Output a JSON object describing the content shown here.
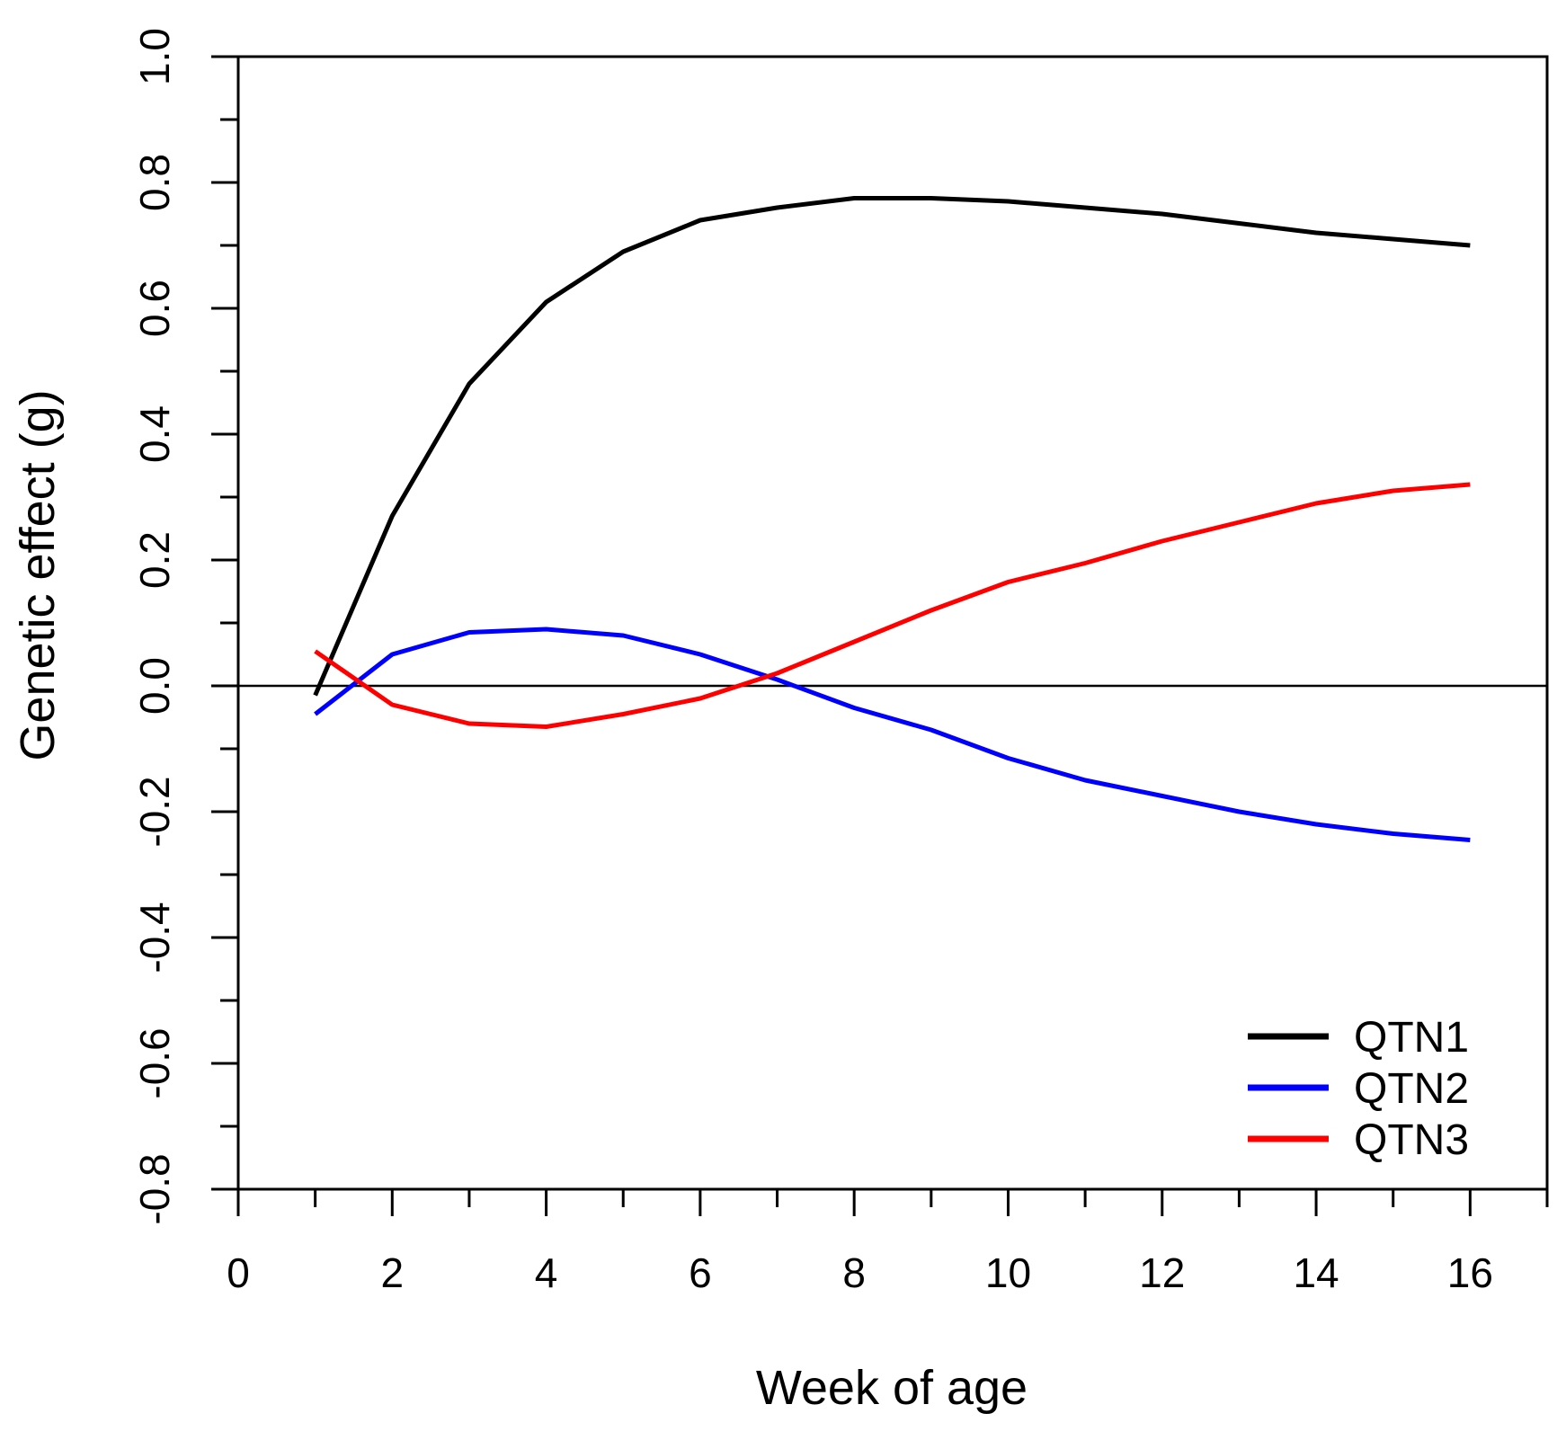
{
  "chart_data": {
    "type": "line",
    "title": "",
    "xlabel": "Week of age",
    "ylabel": "Genetic effect (g)",
    "xlim": [
      0,
      17
    ],
    "ylim": [
      -0.8,
      1.0
    ],
    "grid": false,
    "background": "#ffffff",
    "axis_color": "#000000",
    "zero_line": {
      "y": 0,
      "color": "#000000"
    },
    "x_axis": {
      "major_ticks": [
        0,
        2,
        4,
        6,
        8,
        10,
        12,
        14,
        16
      ],
      "major_tick_labels": [
        "0",
        "2",
        "4",
        "6",
        "8",
        "10",
        "12",
        "14",
        "16"
      ],
      "minor_ticks": [
        1,
        3,
        5,
        7,
        9,
        11,
        13,
        15,
        17
      ]
    },
    "y_axis": {
      "major_ticks": [
        -0.8,
        -0.6,
        -0.4,
        -0.2,
        0.0,
        0.2,
        0.4,
        0.6,
        0.8,
        1.0
      ],
      "major_tick_labels": [
        "-0.8",
        "-0.6",
        "-0.4",
        "-0.2",
        "0.0",
        "0.2",
        "0.4",
        "0.6",
        "0.8",
        "1.0"
      ],
      "minor_ticks": [
        -0.7,
        -0.5,
        -0.3,
        -0.1,
        0.1,
        0.3,
        0.5,
        0.7,
        0.9
      ]
    },
    "x": [
      1,
      2,
      3,
      4,
      5,
      6,
      7,
      8,
      9,
      10,
      11,
      12,
      13,
      14,
      15,
      16
    ],
    "series": [
      {
        "name": "QTN1",
        "color": "#000000",
        "values": [
          -0.015,
          0.27,
          0.48,
          0.61,
          0.69,
          0.74,
          0.76,
          0.775,
          0.775,
          0.77,
          0.76,
          0.75,
          0.735,
          0.72,
          0.71,
          0.7
        ]
      },
      {
        "name": "QTN2",
        "color": "#0000ff",
        "values": [
          -0.045,
          0.05,
          0.085,
          0.09,
          0.08,
          0.05,
          0.01,
          -0.035,
          -0.07,
          -0.115,
          -0.15,
          -0.175,
          -0.2,
          -0.22,
          -0.235,
          -0.245
        ]
      },
      {
        "name": "QTN3",
        "color": "#ff0000",
        "values": [
          0.055,
          -0.03,
          -0.06,
          -0.065,
          -0.045,
          -0.02,
          0.02,
          0.07,
          0.12,
          0.165,
          0.195,
          0.23,
          0.26,
          0.29,
          0.31,
          0.32
        ]
      }
    ],
    "legend": {
      "position": "bottom-right",
      "entries": [
        "QTN1",
        "QTN2",
        "QTN3"
      ]
    }
  }
}
